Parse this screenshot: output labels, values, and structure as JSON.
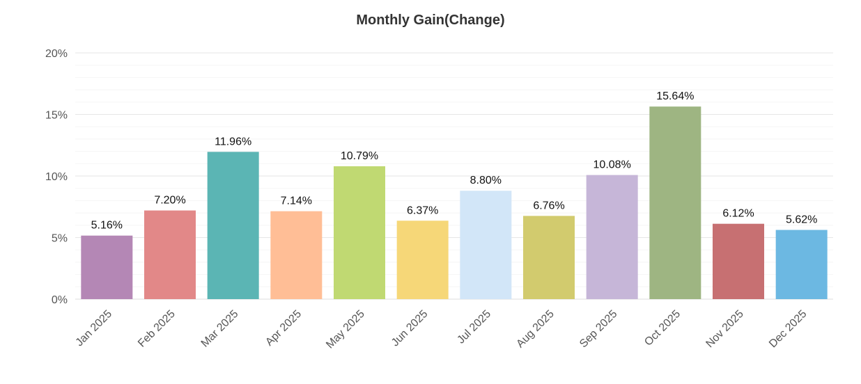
{
  "chart_data": {
    "type": "bar",
    "title": "Monthly Gain(Change)",
    "xlabel": "",
    "ylabel": "",
    "ylim": [
      0,
      20
    ],
    "yticks": [
      0,
      5,
      10,
      15,
      20
    ],
    "ytick_labels": [
      "0%",
      "5%",
      "10%",
      "15%",
      "20%"
    ],
    "grid": true,
    "categories": [
      "Jan 2025",
      "Feb 2025",
      "Mar 2025",
      "Apr 2025",
      "May 2025",
      "Jun 2025",
      "Jul 2025",
      "Aug 2025",
      "Sep 2025",
      "Oct 2025",
      "Nov 2025",
      "Dec 2025"
    ],
    "values": [
      5.16,
      7.2,
      11.96,
      7.14,
      10.79,
      6.37,
      8.8,
      6.76,
      10.08,
      15.64,
      6.12,
      5.62
    ],
    "data_labels": [
      "5.16%",
      "7.20%",
      "11.96%",
      "7.14%",
      "10.79%",
      "6.37%",
      "8.80%",
      "6.76%",
      "10.08%",
      "15.64%",
      "6.12%",
      "5.62%"
    ],
    "colors": [
      "#b487b5",
      "#e28888",
      "#5bb5b4",
      "#ffbe96",
      "#c0d972",
      "#f6d778",
      "#d2e6f8",
      "#d2cb6e",
      "#c6b6d8",
      "#9eb582",
      "#c77072",
      "#6cb8e2"
    ]
  }
}
